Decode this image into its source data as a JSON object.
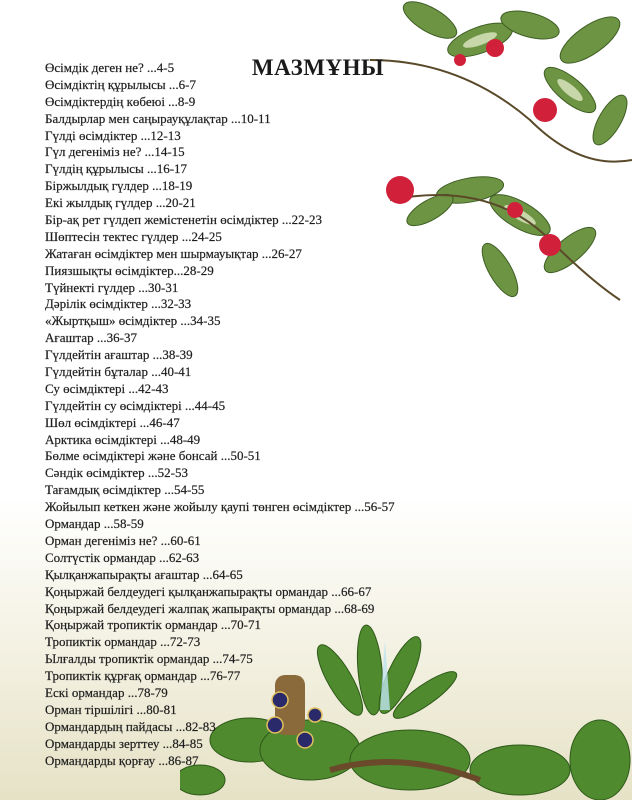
{
  "title": "МАЗМҰНЫ",
  "entries": [
    "Өсімдік деген не? ...4-5",
    "Өсімдіктің құрылысы ...6-7",
    "Өсімдіктердің көбеюі ...8-9",
    "Балдырлар мен саңырауқұлақтар ...10-11",
    "Гүлді өсімдіктер ...12-13",
    "Гүл дегеніміз не? ...14-15",
    "Гүлдің құрылысы ...16-17",
    "Біржылдық гүлдер ...18-19",
    "Екі жылдық гүлдер ...20-21",
    "Бір-ақ рет гүлдеп жемістенетін өсімдіктер ...22-23",
    "Шөптесін тектес гүлдер ...24-25",
    "Жатаған өсімдіктер мен шырмауықтар ...26-27",
    "Пиязшықты өсімдіктер...28-29",
    "Түйнекті гүлдер ...30-31",
    "Дәрілік өсімдіктер ...32-33",
    "«Жыртқыш» өсімдіктер ...34-35",
    "Ағаштар ...36-37",
    "Гүлдейтін ағаштар ...38-39",
    "Гүлдейтін бұталар ...40-41",
    "Су өсімдіктері ...42-43",
    "Гүлдейтін су өсімдіктері ...44-45",
    "Шөл өсімдіктері ...46-47",
    "Арктика өсімдіктері ...48-49",
    "Бөлме өсімдіктері және бонсай ...50-51",
    "Сәндік өсімдіктер ...52-53",
    "Тағамдық өсімдіктер ...54-55",
    "Жойылып кеткен және жойылу қаупі төнген өсімдіктер ...56-57",
    "Ормандар ...58-59",
    "Орман дегеніміз не? ...60-61",
    "Солтүстік ормандар ...62-63",
    "Қылқанжапырақты ағаштар ...64-65",
    "Қоңыржай белдеудегі қылқанжапырақты ормандар ...66-67",
    "Қоңыржай белдеудегі жалпақ жапырақты ормандар ...68-69",
    "Қоңыржай тропиктік ормандар ...70-71",
    "Тропиктік ормандар ...72-73",
    "Ылғалды тропиктік ормандар ...74-75",
    "Тропиктік құрғақ ормандар ...76-77",
    "Ескі ормандар ...78-79",
    "Орман тіршілігі ...80-81",
    "Ормандардың пайдасы ...82-83",
    "Ормандарды зерттеу ...84-85",
    "Ормандарды қорғау ...86-87"
  ],
  "colors": {
    "berry": "#d0203a",
    "leaf": "#5f8a3a",
    "leaf_light": "#c9d9a8",
    "background_bottom": "#e6e2c6"
  }
}
